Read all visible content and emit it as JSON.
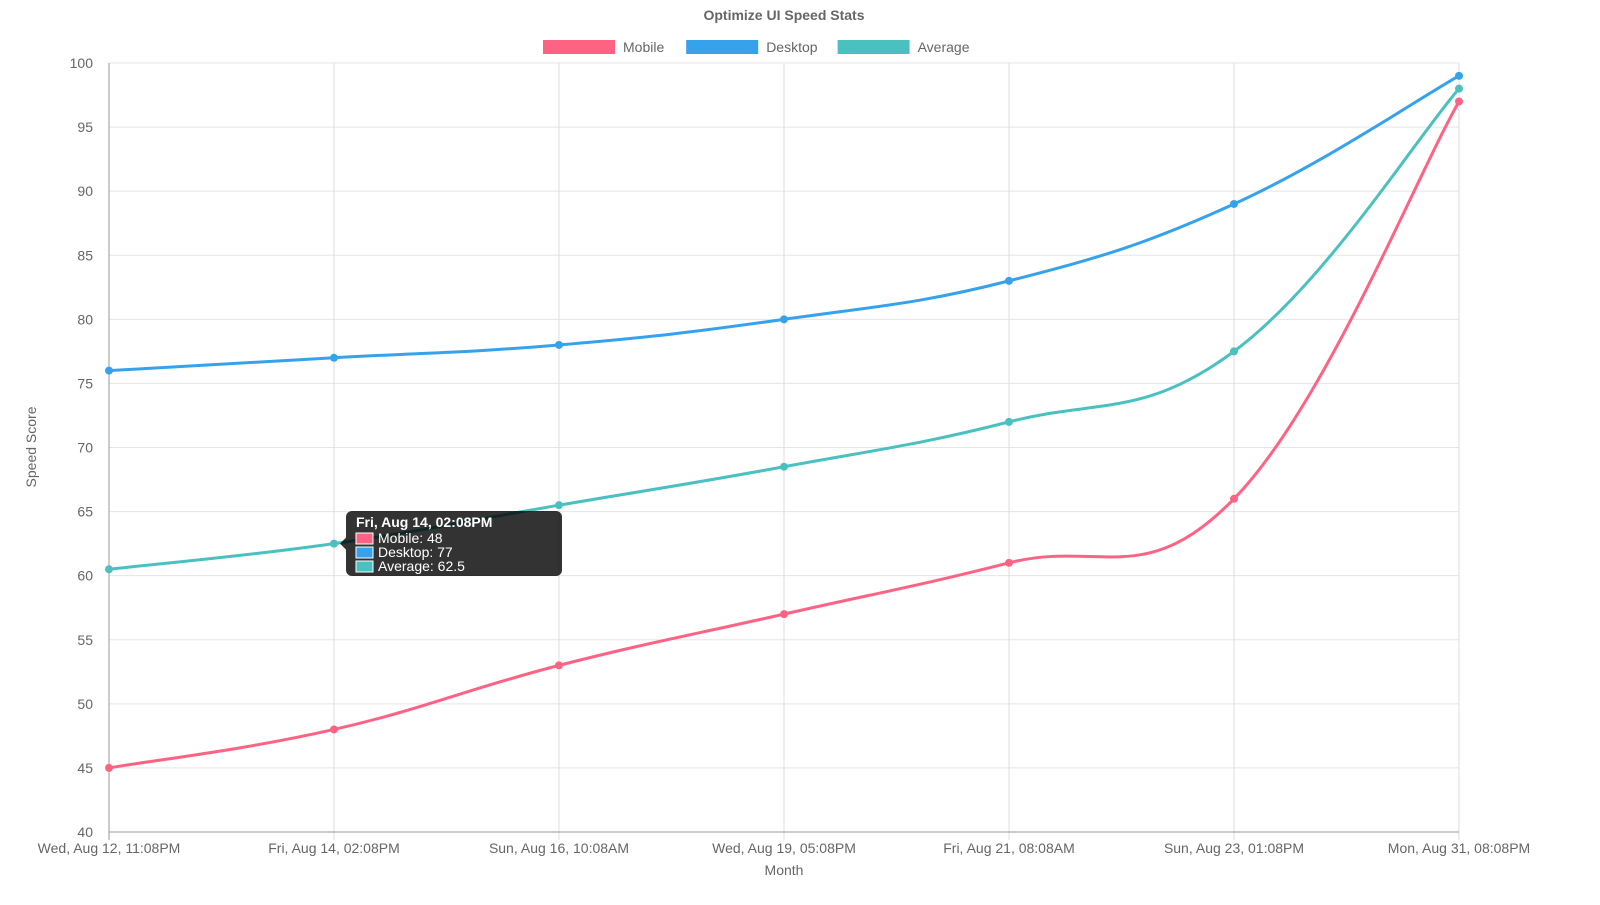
{
  "chart_data": {
    "type": "line",
    "title": "Optimize UI Speed Stats",
    "xlabel": "Month",
    "ylabel": "Speed Score",
    "ylim": [
      40,
      100
    ],
    "yticks": [
      40,
      45,
      50,
      55,
      60,
      65,
      70,
      75,
      80,
      85,
      90,
      95,
      100
    ],
    "grid": true,
    "legend_position": "top",
    "categories": [
      "Wed, Aug 12, 11:08PM",
      "Fri, Aug 14, 02:08PM",
      "Sun, Aug 16, 10:08AM",
      "Wed, Aug 19, 05:08PM",
      "Fri, Aug 21, 08:08AM",
      "Sun, Aug 23, 01:08PM",
      "Mon, Aug 31, 08:08PM"
    ],
    "series": [
      {
        "name": "Mobile",
        "color": "#ff6384",
        "values": [
          45,
          48,
          53,
          57,
          61,
          66,
          97
        ]
      },
      {
        "name": "Desktop",
        "color": "#36a2eb",
        "values": [
          76,
          77,
          78,
          80,
          83,
          89,
          99
        ]
      },
      {
        "name": "Average",
        "color": "#4bc0c0",
        "values": [
          60.5,
          62.5,
          65.5,
          68.5,
          72,
          77.5,
          98
        ]
      }
    ],
    "tooltip": {
      "title": "Fri, Aug 14, 02:08PM",
      "category_index": 1,
      "lines": [
        "Mobile: 48",
        "Desktop: 77",
        "Average: 62.5"
      ]
    }
  }
}
